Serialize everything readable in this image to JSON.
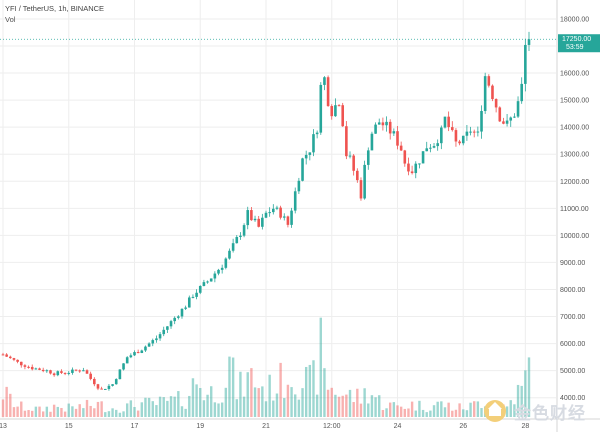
{
  "header": {
    "symbol": "YFI / TetherUS, 1h, BINANCE",
    "volume_label": "Vol"
  },
  "colors": {
    "up": "#26a69a",
    "down": "#ef5350",
    "grid": "#eeeeee",
    "last_price_tag": "#26a69a"
  },
  "watermark": {
    "text": "金色财经",
    "icon": "gold-coin-logo-icon"
  },
  "chart_data": {
    "type": "candlestick",
    "title": "YFI / TetherUS, 1h, BINANCE",
    "timeframe": "1h",
    "exchange": "BINANCE",
    "x_tick_labels": [
      "13",
      "15",
      "17",
      "19",
      "21",
      "12:00",
      "24",
      "26",
      "28"
    ],
    "y_tick_values": [
      4000,
      5000,
      6000,
      7000,
      8000,
      9000,
      10000,
      11000,
      12000,
      13000,
      14000,
      15000,
      16000,
      17000,
      18000
    ],
    "y_tick_labels": [
      "4000.00",
      "5000.00",
      "6000.00",
      "7000.00",
      "8000.00",
      "9000.00",
      "10000.00",
      "11000.00",
      "12000.00",
      "13000.00",
      "14000.00",
      "15000.00",
      "16000.00",
      "17000.00",
      "18000.00"
    ],
    "ylim": [
      3250,
      18700
    ],
    "last_price": "17250.00",
    "countdown": "53:59",
    "grid": true,
    "price_path": [
      [
        0,
        5600
      ],
      [
        4,
        5300
      ],
      [
        8,
        5100
      ],
      [
        12,
        5000
      ],
      [
        14,
        4900
      ],
      [
        18,
        4950
      ],
      [
        22,
        5050
      ],
      [
        24,
        4700
      ],
      [
        26,
        4400
      ],
      [
        27,
        4300
      ],
      [
        30,
        4500
      ],
      [
        34,
        5500
      ],
      [
        38,
        5800
      ],
      [
        42,
        6200
      ],
      [
        46,
        6800
      ],
      [
        50,
        7400
      ],
      [
        52,
        7800
      ],
      [
        56,
        8300
      ],
      [
        60,
        8900
      ],
      [
        63,
        9600
      ],
      [
        65,
        10100
      ],
      [
        67,
        10800
      ],
      [
        70,
        10300
      ],
      [
        72,
        10800
      ],
      [
        74,
        11000
      ],
      [
        76,
        10800
      ],
      [
        78,
        10400
      ],
      [
        80,
        11600
      ],
      [
        82,
        12800
      ],
      [
        84,
        13200
      ],
      [
        86,
        14000
      ],
      [
        87,
        15500
      ],
      [
        88,
        15800
      ],
      [
        89,
        15000
      ],
      [
        90,
        14600
      ],
      [
        92,
        15000
      ],
      [
        93,
        14200
      ],
      [
        94,
        13000
      ],
      [
        95,
        12800
      ],
      [
        97,
        12000
      ],
      [
        98,
        11500
      ],
      [
        99,
        12500
      ],
      [
        100,
        13300
      ],
      [
        101,
        13800
      ],
      [
        103,
        14200
      ],
      [
        105,
        14000
      ],
      [
        107,
        13700
      ],
      [
        109,
        13200
      ],
      [
        110,
        12700
      ],
      [
        112,
        12400
      ],
      [
        114,
        12800
      ],
      [
        116,
        13300
      ],
      [
        118,
        13400
      ],
      [
        120,
        13800
      ],
      [
        121,
        14300
      ],
      [
        122,
        14000
      ],
      [
        124,
        13400
      ],
      [
        126,
        13500
      ],
      [
        128,
        13900
      ],
      [
        130,
        13700
      ],
      [
        131,
        14800
      ],
      [
        132,
        15900
      ],
      [
        133,
        15600
      ],
      [
        134,
        15200
      ],
      [
        135,
        14800
      ],
      [
        136,
        14400
      ],
      [
        137,
        14200
      ],
      [
        138,
        14100
      ],
      [
        139,
        14300
      ],
      [
        140,
        14500
      ],
      [
        141,
        14900
      ],
      [
        142,
        15500
      ],
      [
        143,
        17000
      ],
      [
        144,
        17250
      ]
    ],
    "volume_path": [
      [
        0,
        0.28
      ],
      [
        4,
        0.12
      ],
      [
        8,
        0.1
      ],
      [
        10,
        0.08
      ],
      [
        14,
        0.12
      ],
      [
        18,
        0.1
      ],
      [
        22,
        0.12
      ],
      [
        26,
        0.14
      ],
      [
        30,
        0.1
      ],
      [
        34,
        0.12
      ],
      [
        38,
        0.15
      ],
      [
        42,
        0.15
      ],
      [
        46,
        0.18
      ],
      [
        50,
        0.2
      ],
      [
        53,
        0.42
      ],
      [
        56,
        0.25
      ],
      [
        60,
        0.35
      ],
      [
        62,
        0.6
      ],
      [
        64,
        0.3
      ],
      [
        68,
        0.45
      ],
      [
        72,
        0.3
      ],
      [
        76,
        0.4
      ],
      [
        79,
        0.5
      ],
      [
        82,
        0.42
      ],
      [
        84,
        0.38
      ],
      [
        86,
        0.5
      ],
      [
        87,
        0.75
      ],
      [
        88,
        0.45
      ],
      [
        90,
        0.32
      ],
      [
        94,
        0.25
      ],
      [
        98,
        0.22
      ],
      [
        100,
        0.3
      ],
      [
        104,
        0.15
      ],
      [
        108,
        0.12
      ],
      [
        112,
        0.14
      ],
      [
        116,
        0.12
      ],
      [
        120,
        0.15
      ],
      [
        124,
        0.1
      ],
      [
        128,
        0.12
      ],
      [
        132,
        0.2
      ],
      [
        134,
        0.15
      ],
      [
        138,
        0.12
      ],
      [
        140,
        0.25
      ],
      [
        142,
        0.3
      ],
      [
        144,
        0.55
      ]
    ]
  }
}
